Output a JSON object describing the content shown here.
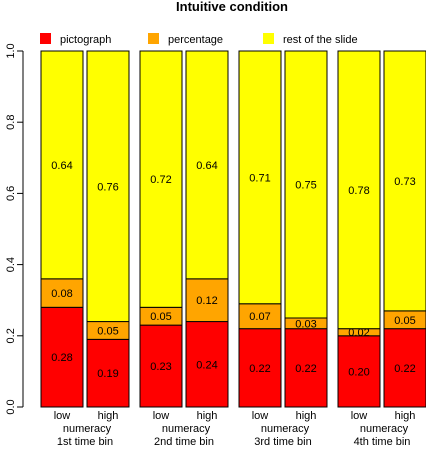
{
  "chart_data": {
    "type": "bar",
    "stacked": true,
    "title": "Intuitive condition",
    "xlabel": "",
    "ylabel": "",
    "ylim": [
      0,
      1
    ],
    "yticks": [
      "0.0",
      "0.2",
      "0.4",
      "0.6",
      "0.8",
      "1.0"
    ],
    "grid": false,
    "legend_position": "top",
    "groups": [
      "1st time bin",
      "2nd time bin",
      "3rd time bin",
      "4th time bin"
    ],
    "bar_labels": [
      [
        "low",
        "numeracy"
      ],
      [
        "high",
        ""
      ],
      [
        "low",
        "numeracy"
      ],
      [
        "high",
        ""
      ],
      [
        "low",
        "numeracy"
      ],
      [
        "high",
        ""
      ],
      [
        "low",
        "numeracy"
      ],
      [
        "high",
        ""
      ]
    ],
    "series": [
      {
        "name": "pictograph",
        "color": "#ff0000",
        "values": [
          0.28,
          0.19,
          0.23,
          0.24,
          0.22,
          0.22,
          0.2,
          0.22
        ],
        "labels": [
          "0.28",
          "0.19",
          "0.23",
          "0.24",
          "0.22",
          "0.22",
          "0.20",
          "0.22"
        ]
      },
      {
        "name": "percentage",
        "color": "#ffa500",
        "values": [
          0.08,
          0.05,
          0.05,
          0.12,
          0.07,
          0.03,
          0.02,
          0.05
        ],
        "labels": [
          "0.08",
          "0.05",
          "0.05",
          "0.12",
          "0.07",
          "0.03",
          "0.02",
          "0.05"
        ]
      },
      {
        "name": "rest of the slide",
        "color": "#ffff00",
        "values": [
          0.64,
          0.76,
          0.72,
          0.64,
          0.71,
          0.75,
          0.78,
          0.73
        ],
        "labels": [
          "0.64",
          "0.76",
          "0.72",
          "0.64",
          "0.71",
          "0.75",
          "0.78",
          "0.73"
        ]
      }
    ]
  }
}
